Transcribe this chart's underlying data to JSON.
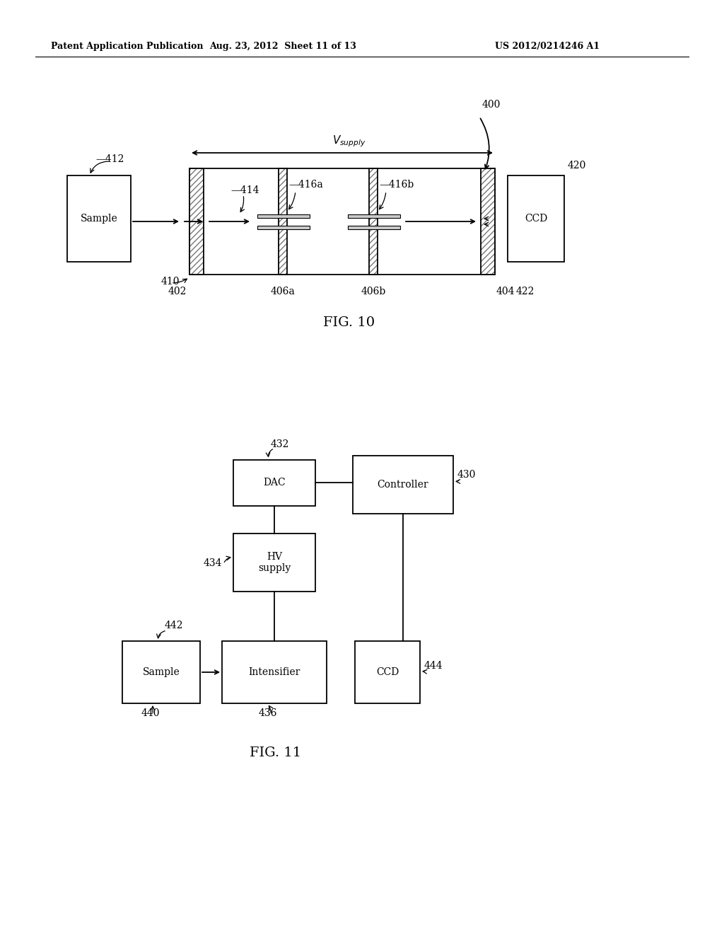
{
  "header_left": "Patent Application Publication",
  "header_mid": "Aug. 23, 2012  Sheet 11 of 13",
  "header_right": "US 2012/0214246 A1",
  "fig10_label": "FIG. 10",
  "fig11_label": "FIG. 11",
  "bg_color": "#ffffff",
  "line_color": "#000000"
}
